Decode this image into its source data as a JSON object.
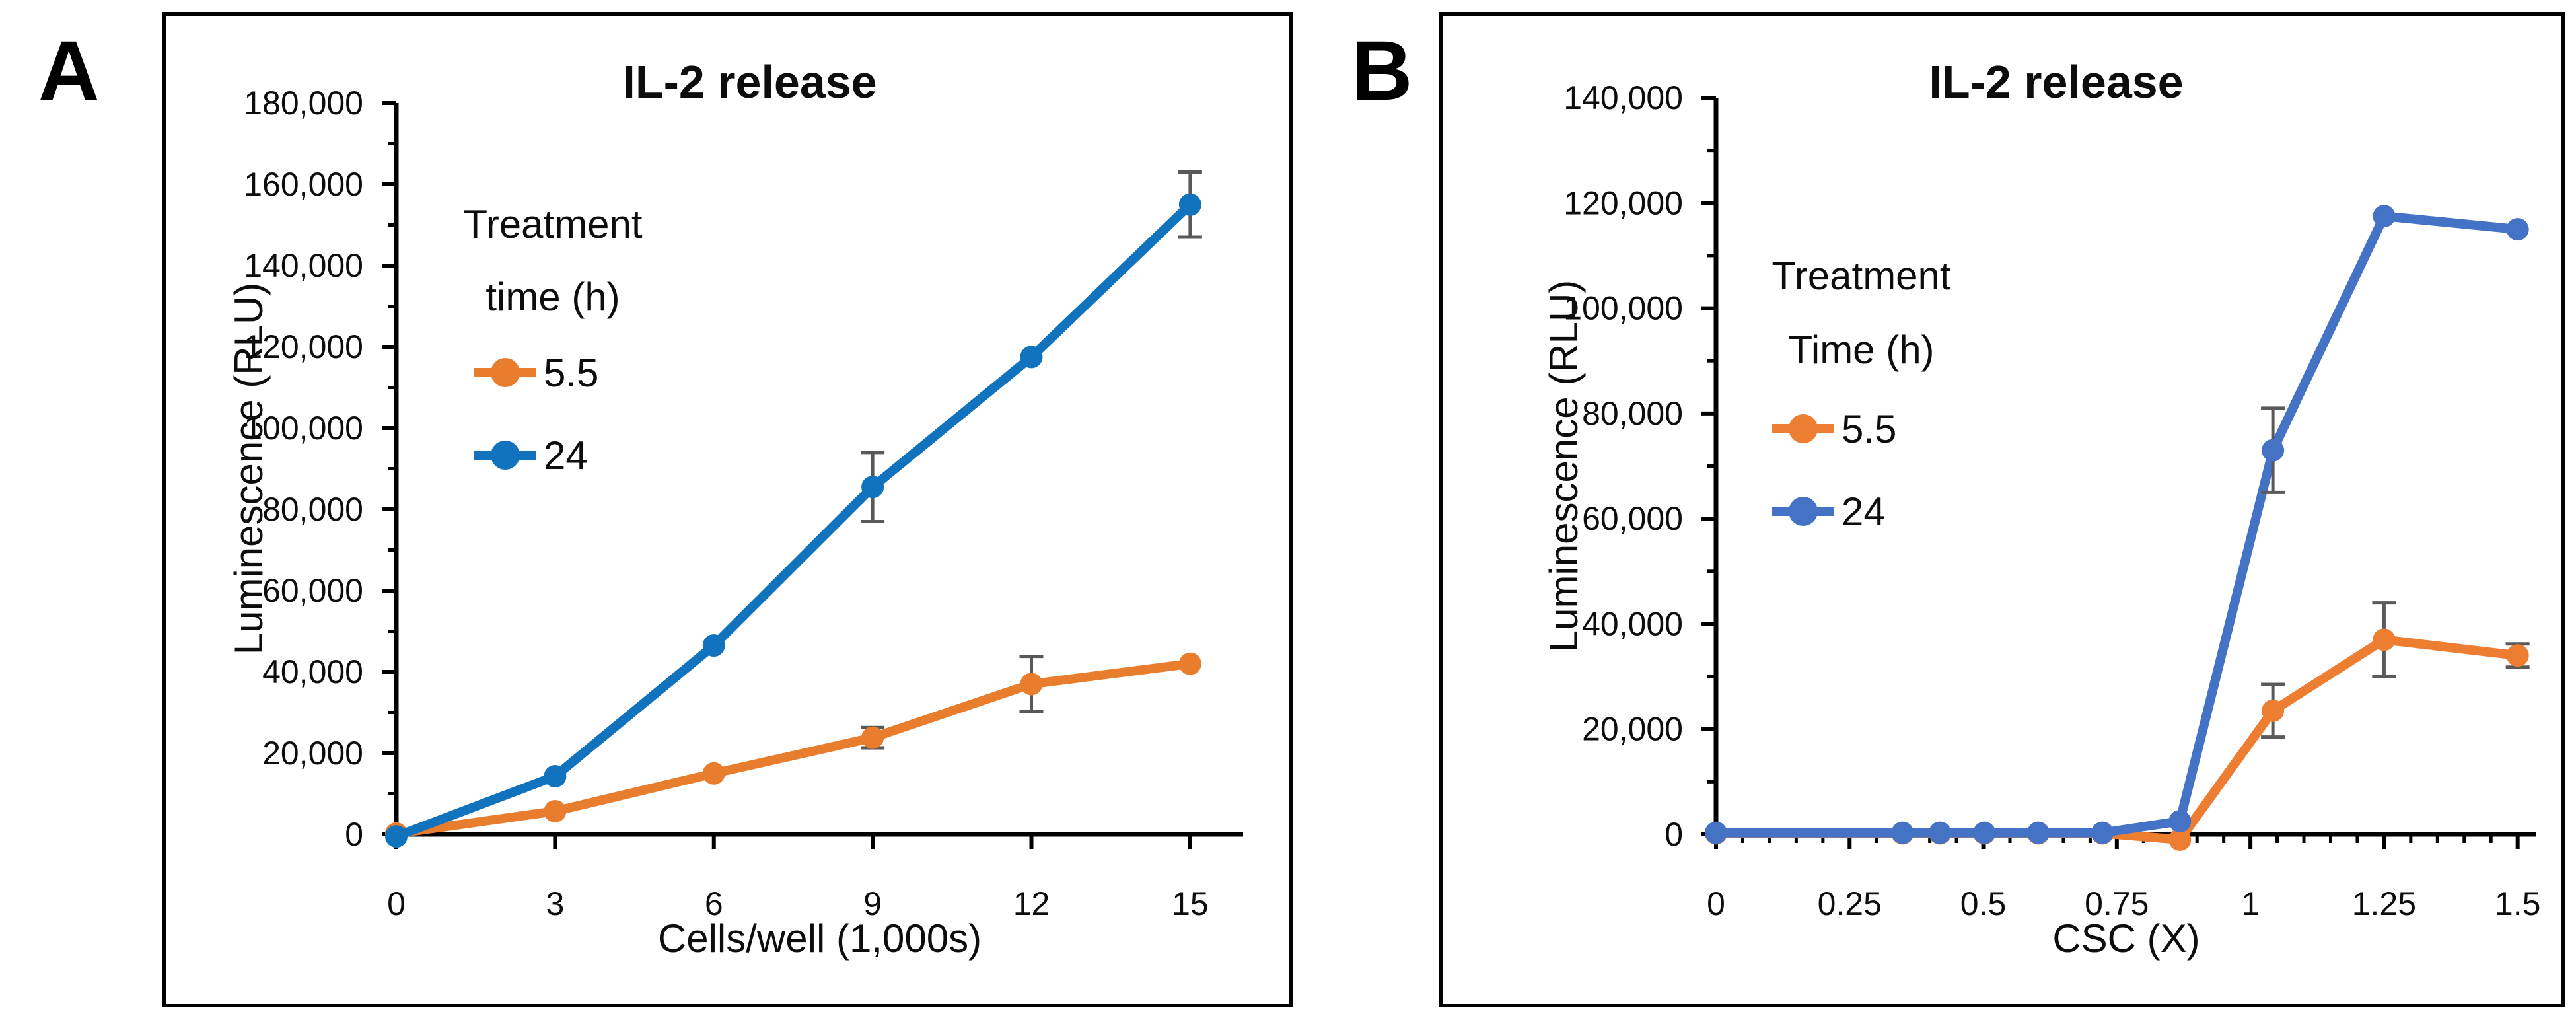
{
  "figure": {
    "background": "#ffffff",
    "panel_labels": [
      "A",
      "B"
    ]
  },
  "chart_data": [
    {
      "type": "line",
      "panel_label": "A",
      "title": "IL-2 release",
      "xlabel": "Cells/well (1,000s)",
      "ylabel": "Luminescence (RLU)",
      "xlim": [
        0,
        16
      ],
      "ylim": [
        0,
        180000
      ],
      "x_major_ticks": [
        0,
        3,
        6,
        9,
        12,
        15
      ],
      "x_tick_labels": [
        "0",
        "3",
        "6",
        "9",
        "12",
        "15"
      ],
      "x_minor_step": null,
      "y_major_step": 20000,
      "y_minor_step": 10000,
      "grid": false,
      "legend_position": "upper-left-inside",
      "legend_title_lines": [
        "Treatment",
        "time (h)"
      ],
      "error_bar_color": "#595959",
      "series": [
        {
          "name": "5.5",
          "color": "#E87D2D",
          "x": [
            0,
            3,
            6,
            9,
            12,
            15
          ],
          "y": [
            200,
            5700,
            15000,
            23800,
            37000,
            42000
          ],
          "err": [
            0,
            0,
            0,
            2500,
            6800,
            0
          ]
        },
        {
          "name": "24",
          "color": "#1172BD",
          "x": [
            0,
            3,
            6,
            9,
            12,
            15
          ],
          "y": [
            -500,
            14300,
            46500,
            85500,
            117500,
            155000
          ],
          "err": [
            0,
            0,
            0,
            8500,
            0,
            8000
          ]
        }
      ]
    },
    {
      "type": "line",
      "panel_label": "B",
      "title": "IL-2 release",
      "xlabel": "CSC (X)",
      "ylabel": "Luminescence (RLU)",
      "xlim": [
        0,
        1.535
      ],
      "ylim": [
        0,
        140000
      ],
      "x_major_ticks": [
        0,
        0.25,
        0.5,
        0.75,
        1,
        1.25,
        1.5
      ],
      "x_tick_labels": [
        "0",
        "0.25",
        "0.5",
        "0.75",
        "1",
        "1.25",
        "1.5"
      ],
      "x_minor_step": 0.05,
      "y_major_step": 20000,
      "y_minor_step": 10000,
      "grid": false,
      "legend_position": "upper-left-inside",
      "legend_title_lines": [
        "Treatment",
        "Time (h)"
      ],
      "error_bar_color": "#595959",
      "series": [
        {
          "name": "5.5",
          "color": "#ED7D31",
          "x": [
            0,
            0.349,
            0.419,
            0.502,
            0.603,
            0.723,
            0.868,
            1.042,
            1.25,
            1.5
          ],
          "y": [
            200,
            200,
            200,
            200,
            200,
            200,
            -1000,
            23500,
            37000,
            34000
          ],
          "err": [
            0,
            0,
            0,
            0,
            0,
            0,
            0,
            5000,
            7000,
            2200
          ]
        },
        {
          "name": "24",
          "color": "#4472C4",
          "x": [
            0,
            0.349,
            0.419,
            0.502,
            0.603,
            0.723,
            0.868,
            1.042,
            1.25,
            1.5
          ],
          "y": [
            300,
            300,
            300,
            300,
            300,
            300,
            2500,
            73000,
            117500,
            115000
          ],
          "err": [
            0,
            0,
            0,
            0,
            0,
            0,
            0,
            8000,
            0,
            0
          ]
        }
      ]
    }
  ]
}
